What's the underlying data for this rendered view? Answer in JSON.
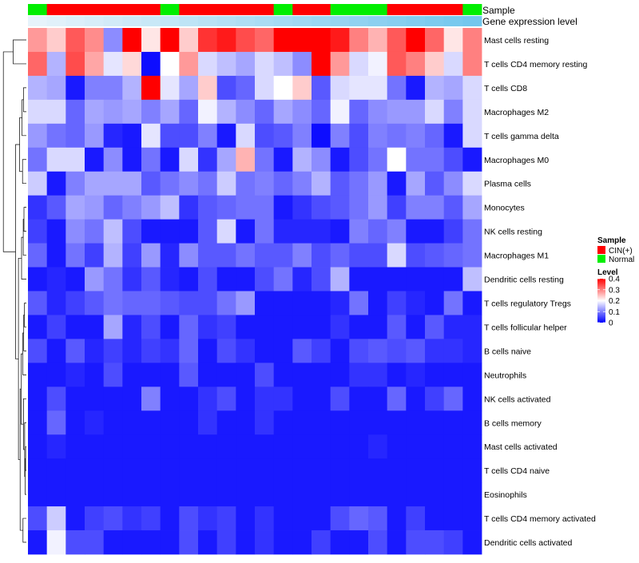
{
  "chart_data": {
    "type": "heatmap",
    "title": "",
    "annotation_rows": [
      {
        "label": "Sample",
        "values": [
          "Normal",
          "CIN(+)",
          "CIN(+)",
          "CIN(+)",
          "CIN(+)",
          "CIN(+)",
          "CIN(+)",
          "Normal",
          "CIN(+)",
          "CIN(+)",
          "CIN(+)",
          "CIN(+)",
          "CIN(+)",
          "Normal",
          "CIN(+)",
          "CIN(+)",
          "Normal",
          "Normal",
          "Normal",
          "CIN(+)",
          "CIN(+)",
          "CIN(+)",
          "CIN(+)",
          "Normal"
        ]
      },
      {
        "label": "Gene expression level",
        "values": [
          0.02,
          0.06,
          0.1,
          0.14,
          0.18,
          0.22,
          0.26,
          0.3,
          0.34,
          0.38,
          0.42,
          0.46,
          0.5,
          0.54,
          0.58,
          0.62,
          0.66,
          0.7,
          0.74,
          0.78,
          0.82,
          0.86,
          0.9,
          0.94
        ]
      }
    ],
    "rows": [
      "Mast cells resting",
      "T cells CD4 memory resting",
      "T cells CD8",
      "Macrophages M2",
      "T cells gamma delta",
      "Macrophages M0",
      "Plasma cells",
      "Monocytes",
      "NK cells resting",
      "Macrophages M1",
      "Dendritic cells resting",
      "T cells regulatory  Tregs",
      "T cells follicular helper",
      "B cells naive",
      "Neutrophils",
      "NK cells activated",
      "B cells memory",
      "Mast cells activated",
      "T cells CD4 naive",
      "Eosinophils",
      "T cells CD4 memory activated",
      "Dendritic cells activated"
    ],
    "values": [
      [
        0.28,
        0.24,
        0.33,
        0.29,
        0.11,
        0.4,
        0.22,
        0.4,
        0.24,
        0.36,
        0.38,
        0.34,
        0.32,
        0.4,
        0.4,
        0.4,
        0.38,
        0.3,
        0.26,
        0.33,
        0.4,
        0.32,
        0.22,
        0.3
      ],
      [
        0.32,
        0.14,
        0.34,
        0.27,
        0.18,
        0.23,
        0.01,
        0.2,
        0.28,
        0.17,
        0.15,
        0.13,
        0.17,
        0.15,
        0.11,
        0.4,
        0.28,
        0.17,
        0.19,
        0.33,
        0.3,
        0.24,
        0.17,
        0.3
      ],
      [
        0.14,
        0.13,
        0.02,
        0.1,
        0.1,
        0.14,
        0.4,
        0.18,
        0.13,
        0.24,
        0.06,
        0.08,
        0.17,
        0.2,
        0.24,
        0.07,
        0.17,
        0.18,
        0.18,
        0.09,
        0.02,
        0.14,
        0.13,
        0.17
      ],
      [
        0.17,
        0.17,
        0.08,
        0.13,
        0.12,
        0.13,
        0.1,
        0.13,
        0.08,
        0.19,
        0.14,
        0.11,
        0.08,
        0.13,
        0.11,
        0.08,
        0.19,
        0.08,
        0.11,
        0.12,
        0.12,
        0.17,
        0.1,
        0.17
      ],
      [
        0.12,
        0.09,
        0.08,
        0.12,
        0.03,
        0.02,
        0.18,
        0.06,
        0.06,
        0.1,
        0.02,
        0.17,
        0.06,
        0.07,
        0.1,
        0.01,
        0.1,
        0.06,
        0.1,
        0.09,
        0.1,
        0.08,
        0.02,
        0.17
      ],
      [
        0.09,
        0.17,
        0.17,
        0.02,
        0.11,
        0.02,
        0.09,
        0.02,
        0.17,
        0.04,
        0.13,
        0.26,
        0.09,
        0.02,
        0.14,
        0.11,
        0.02,
        0.06,
        0.09,
        0.2,
        0.09,
        0.09,
        0.06,
        0.02
      ],
      [
        0.16,
        0.02,
        0.1,
        0.13,
        0.13,
        0.13,
        0.07,
        0.09,
        0.11,
        0.09,
        0.16,
        0.09,
        0.1,
        0.08,
        0.1,
        0.14,
        0.07,
        0.09,
        0.12,
        0.02,
        0.13,
        0.07,
        0.11,
        0.17
      ],
      [
        0.04,
        0.07,
        0.13,
        0.12,
        0.08,
        0.1,
        0.12,
        0.15,
        0.04,
        0.07,
        0.08,
        0.09,
        0.09,
        0.02,
        0.04,
        0.06,
        0.07,
        0.09,
        0.12,
        0.05,
        0.1,
        0.1,
        0.07,
        0.13
      ],
      [
        0.05,
        0.02,
        0.11,
        0.09,
        0.15,
        0.06,
        0.02,
        0.02,
        0.02,
        0.07,
        0.17,
        0.02,
        0.09,
        0.03,
        0.03,
        0.03,
        0.02,
        0.1,
        0.08,
        0.1,
        0.02,
        0.02,
        0.05,
        0.09
      ],
      [
        0.08,
        0.02,
        0.09,
        0.05,
        0.14,
        0.05,
        0.12,
        0.03,
        0.11,
        0.07,
        0.07,
        0.09,
        0.07,
        0.07,
        0.1,
        0.06,
        0.08,
        0.06,
        0.06,
        0.17,
        0.06,
        0.07,
        0.08,
        0.09
      ],
      [
        0.02,
        0.03,
        0.02,
        0.12,
        0.09,
        0.04,
        0.07,
        0.03,
        0.02,
        0.06,
        0.02,
        0.02,
        0.06,
        0.09,
        0.03,
        0.06,
        0.14,
        0.02,
        0.02,
        0.02,
        0.02,
        0.02,
        0.02,
        0.15
      ],
      [
        0.07,
        0.03,
        0.05,
        0.07,
        0.09,
        0.08,
        0.08,
        0.07,
        0.06,
        0.06,
        0.09,
        0.12,
        0.02,
        0.02,
        0.02,
        0.02,
        0.03,
        0.09,
        0.02,
        0.05,
        0.03,
        0.02,
        0.09,
        0.02
      ],
      [
        0.02,
        0.05,
        0.02,
        0.02,
        0.13,
        0.03,
        0.06,
        0.02,
        0.08,
        0.04,
        0.05,
        0.02,
        0.02,
        0.02,
        0.02,
        0.02,
        0.04,
        0.02,
        0.02,
        0.07,
        0.02,
        0.07,
        0.03,
        0.03
      ],
      [
        0.06,
        0.02,
        0.07,
        0.03,
        0.05,
        0.03,
        0.05,
        0.04,
        0.08,
        0.02,
        0.06,
        0.04,
        0.02,
        0.02,
        0.07,
        0.05,
        0.02,
        0.06,
        0.07,
        0.06,
        0.07,
        0.04,
        0.04,
        0.03
      ],
      [
        0.02,
        0.02,
        0.03,
        0.02,
        0.06,
        0.02,
        0.02,
        0.02,
        0.07,
        0.02,
        0.02,
        0.02,
        0.06,
        0.02,
        0.02,
        0.02,
        0.02,
        0.04,
        0.04,
        0.02,
        0.03,
        0.02,
        0.02,
        0.02
      ],
      [
        0.02,
        0.06,
        0.02,
        0.02,
        0.02,
        0.02,
        0.1,
        0.02,
        0.02,
        0.04,
        0.06,
        0.02,
        0.04,
        0.04,
        0.02,
        0.02,
        0.06,
        0.02,
        0.02,
        0.08,
        0.02,
        0.05,
        0.08,
        0.02
      ],
      [
        0.02,
        0.08,
        0.02,
        0.03,
        0.02,
        0.02,
        0.02,
        0.02,
        0.02,
        0.04,
        0.02,
        0.02,
        0.04,
        0.02,
        0.02,
        0.02,
        0.02,
        0.02,
        0.02,
        0.02,
        0.02,
        0.02,
        0.02,
        0.02
      ],
      [
        0.02,
        0.03,
        0.02,
        0.02,
        0.02,
        0.02,
        0.02,
        0.02,
        0.02,
        0.02,
        0.02,
        0.02,
        0.02,
        0.02,
        0.02,
        0.02,
        0.02,
        0.02,
        0.03,
        0.02,
        0.02,
        0.02,
        0.02,
        0.02
      ],
      [
        0.02,
        0.02,
        0.02,
        0.02,
        0.02,
        0.02,
        0.02,
        0.02,
        0.02,
        0.02,
        0.02,
        0.02,
        0.02,
        0.02,
        0.02,
        0.02,
        0.02,
        0.02,
        0.02,
        0.02,
        0.02,
        0.02,
        0.02,
        0.02
      ],
      [
        0.02,
        0.02,
        0.02,
        0.02,
        0.02,
        0.02,
        0.02,
        0.02,
        0.02,
        0.02,
        0.02,
        0.02,
        0.02,
        0.02,
        0.02,
        0.02,
        0.02,
        0.02,
        0.02,
        0.02,
        0.02,
        0.02,
        0.02,
        0.02
      ],
      [
        0.06,
        0.16,
        0.02,
        0.05,
        0.06,
        0.04,
        0.05,
        0.02,
        0.06,
        0.04,
        0.05,
        0.02,
        0.04,
        0.02,
        0.02,
        0.02,
        0.06,
        0.08,
        0.07,
        0.02,
        0.05,
        0.02,
        0.02,
        0.02
      ],
      [
        0.02,
        0.19,
        0.06,
        0.06,
        0.02,
        0.02,
        0.02,
        0.02,
        0.06,
        0.02,
        0.05,
        0.02,
        0.04,
        0.02,
        0.02,
        0.05,
        0.02,
        0.02,
        0.06,
        0.02,
        0.06,
        0.06,
        0.05,
        0.02
      ]
    ],
    "legend": {
      "sample_title": "Sample",
      "sample_entries": [
        {
          "label": "CIN(+)",
          "color": "#ff0000"
        },
        {
          "label": "Normal",
          "color": "#00ee00"
        }
      ],
      "level_title": "Level",
      "level_ticks": [
        0,
        0.1,
        0.2,
        0.3,
        0.4
      ],
      "level_range": [
        0,
        0.4
      ],
      "placement": "right-middle"
    },
    "colorscale": {
      "low": "#0000ff",
      "mid": "#ffffff",
      "high": "#ff0000",
      "mid_value": 0.2
    },
    "expression_scale": {
      "low": "#e8f4fb",
      "high": "#6cc4ec"
    },
    "dendrogram": "row-only, left side"
  }
}
